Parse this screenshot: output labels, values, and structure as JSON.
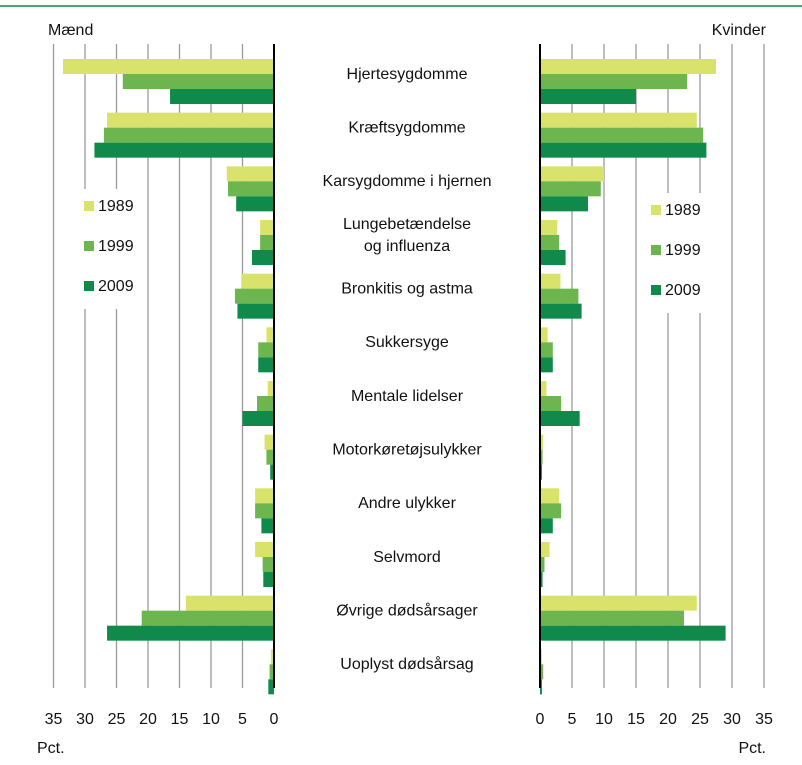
{
  "chart_data": {
    "type": "bar",
    "categories": [
      [
        "Hjertesygdomme"
      ],
      [
        "Kræftsygdomme"
      ],
      [
        "Karsygdomme i hjernen"
      ],
      [
        "Lungebetændelse",
        "og influenza"
      ],
      [
        "Bronkitis og astma"
      ],
      [
        "Sukkersyge"
      ],
      [
        "Mentale lidelser"
      ],
      [
        "Motorkøretøjsulykker"
      ],
      [
        "Andre ulykker"
      ],
      [
        "Selvmord"
      ],
      [
        "Øvrige dødsårsager"
      ],
      [
        "Uoplyst dødsårsag"
      ]
    ],
    "series_colors": {
      "1989": "#d9e36b",
      "1999": "#6cb54f",
      "2009": "#0f8a4a"
    },
    "panels": [
      {
        "title": "Mænd",
        "unit_label": "Pct.",
        "xlim": [
          0,
          35
        ],
        "ticks": [
          35,
          30,
          25,
          20,
          15,
          10,
          5,
          0
        ],
        "direction": "left",
        "legend": "left",
        "series": [
          {
            "name": "1989",
            "values": [
              33.5,
              26.5,
              7.5,
              2.2,
              5.2,
              1.2,
              1.0,
              1.5,
              3.0,
              3.0,
              14.0,
              0.5
            ]
          },
          {
            "name": "1999",
            "values": [
              24.0,
              27.0,
              7.3,
              2.2,
              6.2,
              2.5,
              2.7,
              1.2,
              3.0,
              1.8,
              21.0,
              0.7
            ]
          },
          {
            "name": "2009",
            "values": [
              16.5,
              28.5,
              6.0,
              3.5,
              5.8,
              2.5,
              5.0,
              0.6,
              2.0,
              1.7,
              26.5,
              0.9
            ]
          }
        ]
      },
      {
        "title": "Kvinder",
        "unit_label": "Pct.",
        "xlim": [
          0,
          35
        ],
        "ticks": [
          0,
          5,
          10,
          15,
          20,
          25,
          30,
          35
        ],
        "direction": "right",
        "legend": "right",
        "series": [
          {
            "name": "1989",
            "values": [
              27.5,
              24.5,
              10.0,
              2.7,
              3.2,
              1.2,
              1.0,
              0.5,
              3.0,
              1.5,
              24.5,
              0.3
            ]
          },
          {
            "name": "1999",
            "values": [
              23.0,
              25.5,
              9.5,
              3.0,
              6.0,
              2.0,
              3.3,
              0.4,
              3.3,
              0.7,
              22.5,
              0.5
            ]
          },
          {
            "name": "2009",
            "values": [
              15.0,
              26.0,
              7.5,
              4.0,
              6.5,
              2.0,
              6.2,
              0.3,
              2.0,
              0.4,
              29.0,
              0.3
            ]
          }
        ]
      }
    ]
  }
}
